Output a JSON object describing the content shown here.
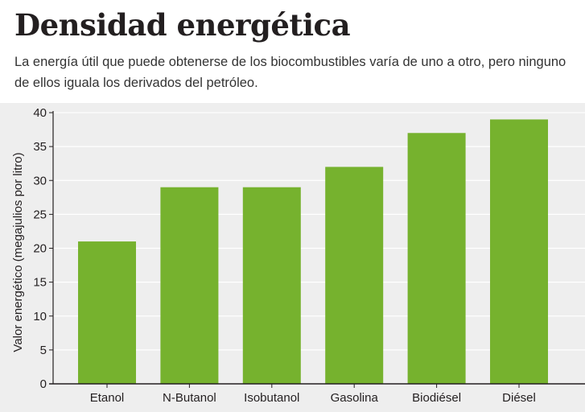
{
  "header": {
    "title": "Densidad energética",
    "subtitle": "La energía útil que puede obtenerse de los biocombustibles varía de uno a otro, pero ninguno de ellos iguala los derivados del petróleo."
  },
  "colors": {
    "bar": "#76b22e",
    "grid": "#ffffff",
    "plot_background": "#eeeeee",
    "axis": "#231f20"
  },
  "chart_data": {
    "type": "bar",
    "title": "Densidad energética",
    "subtitle": "La energía útil que puede obtenerse de los biocombustibles varía de uno a otro, pero ninguno de ellos iguala los derivados del petróleo.",
    "xlabel": "",
    "ylabel": "Valor energético (megajulios por litro)",
    "categories": [
      "Etanol",
      "N-Butanol",
      "Isobutanol",
      "Gasolina",
      "Biodiésel",
      "Diésel"
    ],
    "values": [
      21,
      29,
      29,
      32,
      37,
      39
    ],
    "ylim": [
      0,
      40
    ],
    "yticks": [
      0,
      5,
      10,
      15,
      20,
      25,
      30,
      35,
      40
    ],
    "grid": true,
    "legend": "none"
  }
}
